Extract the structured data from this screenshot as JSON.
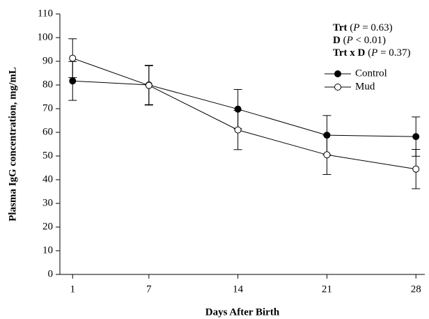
{
  "chart_data": {
    "type": "line",
    "x_label": "Days After Birth",
    "y_label": "Plasma IgG concentration, mg/mL",
    "x": [
      1,
      7,
      14,
      21,
      28
    ],
    "xlim": [
      0,
      28.7
    ],
    "xticks": [
      1,
      7,
      14,
      21,
      28
    ],
    "ylim": [
      0,
      110
    ],
    "yticks": [
      0,
      10,
      20,
      30,
      40,
      50,
      60,
      70,
      80,
      90,
      100,
      110
    ],
    "series": [
      {
        "name": "Control",
        "color": "#000000",
        "marker_fill": "#000000",
        "values": [
          81.7,
          80.0,
          69.8,
          58.8,
          58.2
        ],
        "errors": [
          8.2,
          8.3,
          8.3,
          8.3,
          8.3
        ]
      },
      {
        "name": "Mud",
        "color": "#000000",
        "marker_fill": "#ffffff",
        "values": [
          91.3,
          79.8,
          61.0,
          50.5,
          44.5
        ],
        "errors": [
          8.2,
          8.3,
          8.3,
          8.3,
          8.3
        ]
      }
    ],
    "annotations": [
      [
        "Trt",
        " (",
        "P",
        " = 0.63)"
      ],
      [
        "D",
        " (",
        "P",
        " < 0.01)"
      ],
      [
        "Trt x D",
        " (",
        "P",
        " = 0.37)"
      ]
    ]
  }
}
